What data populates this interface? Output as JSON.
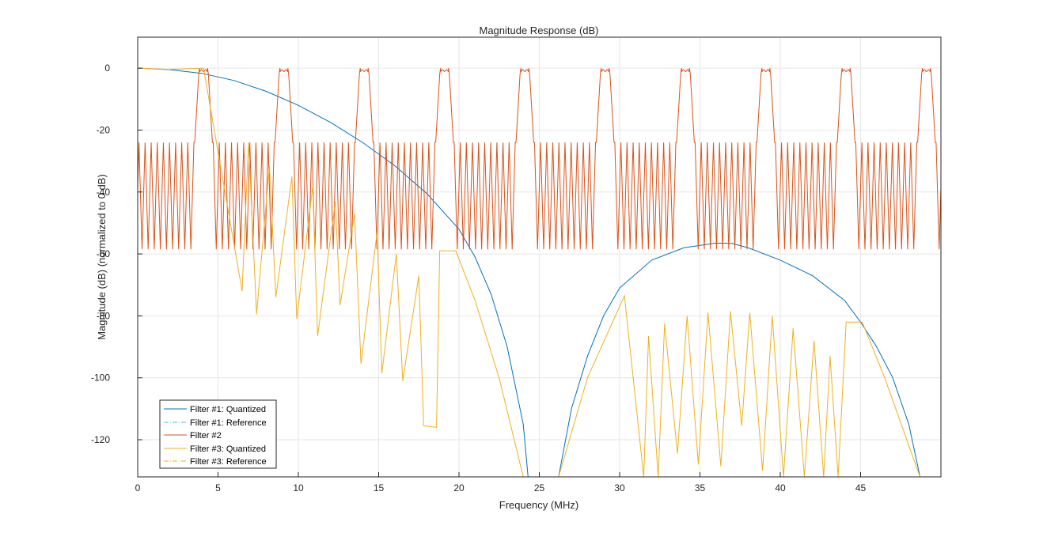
{
  "chart_data": {
    "type": "line",
    "title": "Magnitude Response (dB)",
    "xlabel": "Frequency (MHz)",
    "ylabel": "Magnitude (dB) (normalized to 0 dB)",
    "xlim": [
      0,
      50
    ],
    "ylim": [
      -132,
      10
    ],
    "xticks": [
      0,
      5,
      10,
      15,
      20,
      25,
      30,
      35,
      40,
      45
    ],
    "yticks": [
      0,
      -20,
      -40,
      -60,
      -80,
      -100,
      -120
    ],
    "grid": true,
    "legend_position": "bottom-left",
    "series": [
      {
        "name": "Filter #1: Quantized",
        "color": "#0072BD",
        "style": "solid",
        "x": [
          0,
          2,
          4,
          6,
          8,
          10,
          12,
          14,
          16,
          18,
          20,
          21,
          22,
          23,
          24,
          24.3,
          null,
          26.2,
          27,
          28,
          29,
          30,
          32,
          34,
          36,
          37,
          38,
          40,
          42,
          44,
          45,
          46,
          47,
          48,
          48.7
        ],
        "y": [
          0,
          -0.5,
          -1.7,
          -4,
          -7.5,
          -12,
          -17.5,
          -24,
          -31.5,
          -40.5,
          -52,
          -61,
          -73,
          -90,
          -115,
          -132,
          null,
          -132,
          -110,
          -93,
          -80,
          -71,
          -62,
          -58,
          -56.5,
          -56.6,
          -58,
          -62,
          -67,
          -75,
          -82,
          -90,
          -100,
          -115,
          -132
        ]
      },
      {
        "name": "Filter #1: Reference",
        "color": "#4DBEEE",
        "style": "dashdot",
        "x": [
          0,
          4,
          8,
          12,
          16,
          20,
          22,
          24,
          24.3,
          null,
          26.2,
          28,
          30,
          34,
          36.6,
          40,
          44,
          46,
          48,
          48.7
        ],
        "y": [
          0,
          -1.7,
          -7.5,
          -17.5,
          -31.5,
          -52,
          -73,
          -115,
          -132,
          null,
          -132,
          -93,
          -71,
          -58,
          -56.5,
          -62,
          -75,
          -90,
          -115,
          -132
        ]
      },
      {
        "name": "Filter #2",
        "color": "#D95319",
        "style": "solid",
        "pattern": {
          "period_mhz": 5,
          "passband_ripple_db": -2,
          "stopband_peak_db": -24,
          "stopband_notch_db": -58.5,
          "notches_per_stopband": 10
        },
        "x": [
          0,
          1.3,
          1.3,
          3.9,
          3.9,
          4.2,
          6.3,
          6.3,
          8.9,
          8.9,
          9.2,
          11.3,
          11.3,
          13.9,
          13.9,
          14.2,
          16.3,
          16.3,
          18.9,
          18.9,
          19.2,
          21.3,
          21.3,
          23.9,
          23.9,
          24.2,
          26.3,
          26.3,
          28.9,
          28.9,
          29.2,
          31.3,
          31.3,
          33.9,
          33.9,
          34.2,
          36.3,
          36.3,
          38.9,
          38.9,
          39.2,
          41.3,
          41.3,
          43.9,
          43.9,
          44.2,
          46.3,
          46.3,
          48.9,
          48.9,
          50
        ],
        "y": [
          -2,
          -2,
          -58.5,
          -58.5,
          0,
          0,
          -2,
          -58.5,
          -58.5,
          0,
          0,
          -2,
          -58.5,
          -58.5,
          0,
          0,
          -2,
          -58.5,
          -58.5,
          0,
          0,
          -2,
          -58.5,
          -58.5,
          0,
          0,
          -2,
          -58.5,
          -58.5,
          0,
          0,
          -2,
          -58.5,
          -58.5,
          0,
          0,
          -2,
          -58.5,
          -58.5,
          0,
          0,
          -2,
          -58.5,
          -58.5,
          0,
          0,
          -2,
          -58.5,
          -58.5,
          0,
          -2
        ]
      },
      {
        "name": "Filter #3: Quantized",
        "color": "#EDB120",
        "style": "solid",
        "lobe_peaks": {
          "x": [
            0,
            2,
            4.1,
            6.9,
            8.2,
            9.6,
            10.9,
            12.3,
            13.5,
            14.9,
            16.1,
            17.5,
            18.8,
            19.8,
            21,
            22.5,
            24,
            26.2,
            28,
            30.3,
            31.8,
            32.8,
            34.2,
            35.5,
            36.9,
            38.1,
            39.5,
            40.8,
            42.1,
            43.1,
            44.1,
            45.1,
            46.5,
            48.7
          ],
          "y": [
            0,
            -0.4,
            0,
            -24,
            -31.5,
            -35,
            -38,
            -43,
            -47,
            -53,
            -60,
            -67,
            -59,
            -59,
            -75,
            -100,
            -132,
            -132,
            -100,
            -73.5,
            -86.5,
            -82.5,
            -80,
            -79,
            -78.5,
            -79,
            -80,
            -84,
            -88,
            -93,
            -82,
            -82,
            -100,
            -132
          ]
        },
        "notches": {
          "x": [
            6.5,
            7.4,
            8.6,
            9.9,
            11.2,
            12.6,
            13.9,
            15.2,
            16.5,
            17.8,
            18.6,
            31.5,
            32.4,
            33.6,
            34.9,
            36.3,
            37.6,
            38.9,
            40.2,
            41.5,
            42.7,
            43.6
          ],
          "y": [
            -72,
            -79.5,
            -74,
            -81,
            -86.5,
            -76.5,
            -95.5,
            -98.5,
            -101,
            -115.5,
            -116,
            -132,
            -132,
            -124.5,
            -128,
            -128.5,
            -115.5,
            -130,
            -132,
            -132,
            -132,
            -132
          ]
        }
      },
      {
        "name": "Filter #3: Reference",
        "color": "#EDB120",
        "style": "dashdot"
      }
    ]
  }
}
